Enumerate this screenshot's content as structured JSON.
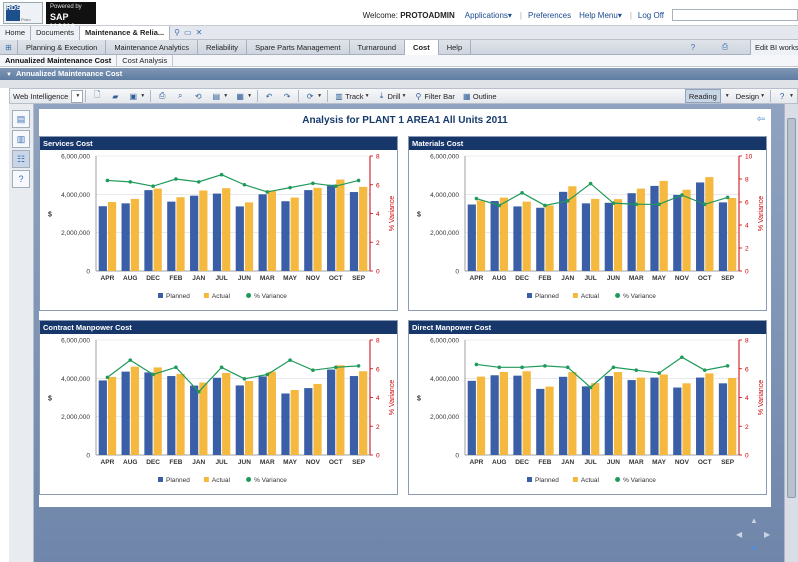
{
  "app": {
    "powered_by_line1": "Powered by",
    "powered_by_line2": "SAP HANA",
    "logo_letters": "RDS",
    "logo_caption": "Proto"
  },
  "header": {
    "welcome_label": "Welcome:",
    "username": "PROTOADMIN",
    "applications": "Applications",
    "preferences": "Preferences",
    "help_menu": "Help Menu",
    "logoff": "Log Off",
    "search_placeholder": ""
  },
  "apptabs": [
    {
      "label": "Home",
      "active": false
    },
    {
      "label": "Documents",
      "active": false
    },
    {
      "label": "Maintenance & Relia...",
      "active": true
    }
  ],
  "modtabs": [
    {
      "label": "Planning & Execution",
      "active": false
    },
    {
      "label": "Maintenance Analytics",
      "active": false
    },
    {
      "label": "Reliability",
      "active": false
    },
    {
      "label": "Spare Parts Management",
      "active": false
    },
    {
      "label": "Turnaround",
      "active": false
    },
    {
      "label": "Cost",
      "active": true
    },
    {
      "label": "Help",
      "active": false
    }
  ],
  "edit_bi": "Edit BI worksp",
  "subtabs": [
    {
      "label": "Annualized Maintenance Cost",
      "active": true
    },
    {
      "label": "Cost Analysis",
      "active": false
    }
  ],
  "document_title": "Annualized Maintenance Cost",
  "toolbar": {
    "web_intelligence": "Web Intelligence",
    "track": "Track",
    "drill": "Drill",
    "filter_bar": "Filter Bar",
    "outline": "Outline",
    "reading": "Reading",
    "design": "Design"
  },
  "report": {
    "title": "Analysis for PLANT 1  AREA1  All Units  2011"
  },
  "colors": {
    "planned": "#3a5fa6",
    "actual": "#f5b940",
    "variance": "#1e9a5a",
    "axis_right": "#cc0000"
  },
  "chart_data": [
    {
      "type": "bar",
      "title": "Services Cost",
      "categories": [
        "APR",
        "AUG",
        "DEC",
        "FEB",
        "JAN",
        "JUL",
        "JUN",
        "MAR",
        "MAY",
        "NOV",
        "OCT",
        "SEP"
      ],
      "ylabel": "$",
      "y2label": "% Variance",
      "ylim": [
        0,
        6000000
      ],
      "y2lim": [
        0,
        8
      ],
      "yticks": [
        "0",
        "2,000,000",
        "4,000,000",
        "6,000,000"
      ],
      "y2ticks": [
        "0",
        "2",
        "4",
        "6",
        "8"
      ],
      "legend": [
        "Planned",
        "Actual",
        "% Variance"
      ],
      "series": [
        {
          "name": "Planned",
          "values": [
            3380000,
            3530000,
            4220000,
            3620000,
            3930000,
            4040000,
            3370000,
            4000000,
            3640000,
            4220000,
            4500000,
            4120000
          ]
        },
        {
          "name": "Actual",
          "values": [
            3600000,
            3760000,
            4300000,
            3850000,
            4200000,
            4320000,
            3580000,
            4200000,
            3830000,
            4340000,
            4770000,
            4390000
          ]
        },
        {
          "name": "% Variance",
          "values": [
            6.3,
            6.2,
            5.9,
            6.4,
            6.2,
            6.7,
            6.0,
            5.5,
            5.8,
            6.1,
            5.9,
            6.3
          ]
        }
      ]
    },
    {
      "type": "bar",
      "title": "Materials Cost",
      "categories": [
        "APR",
        "AUG",
        "DEC",
        "FEB",
        "JAN",
        "JUL",
        "JUN",
        "MAR",
        "MAY",
        "NOV",
        "OCT",
        "SEP"
      ],
      "ylabel": "$",
      "y2label": "% Variance",
      "ylim": [
        0,
        6000000
      ],
      "y2lim": [
        0,
        10
      ],
      "yticks": [
        "0",
        "2,000,000",
        "4,000,000",
        "6,000,000"
      ],
      "y2ticks": [
        "0",
        "2",
        "4",
        "6",
        "8",
        "10"
      ],
      "legend": [
        "Planned",
        "Actual",
        "% Variance"
      ],
      "series": [
        {
          "name": "Planned",
          "values": [
            3470000,
            3650000,
            3370000,
            3300000,
            4130000,
            3530000,
            3560000,
            4060000,
            4440000,
            3970000,
            4620000,
            3580000
          ]
        },
        {
          "name": "Actual",
          "values": [
            3680000,
            3830000,
            3620000,
            3420000,
            4420000,
            3760000,
            3750000,
            4300000,
            4700000,
            4240000,
            4900000,
            3810000
          ]
        },
        {
          "name": "% Variance",
          "values": [
            6.3,
            5.7,
            6.8,
            5.7,
            6.1,
            7.6,
            5.9,
            5.8,
            5.8,
            6.6,
            5.8,
            6.4
          ]
        }
      ]
    },
    {
      "type": "bar",
      "title": "Contract Manpower Cost",
      "categories": [
        "APR",
        "AUG",
        "DEC",
        "FEB",
        "JAN",
        "JUL",
        "JUN",
        "MAR",
        "MAY",
        "NOV",
        "OCT",
        "SEP"
      ],
      "ylabel": "$",
      "y2label": "% Variance",
      "ylim": [
        0,
        6000000
      ],
      "y2lim": [
        0,
        8
      ],
      "yticks": [
        "0",
        "2,000,000",
        "4,000,000",
        "6,000,000"
      ],
      "y2ticks": [
        "0",
        "2",
        "4",
        "6",
        "8"
      ],
      "legend": [
        "Planned",
        "Actual",
        "% Variance"
      ],
      "series": [
        {
          "name": "Planned",
          "values": [
            3890000,
            4350000,
            4310000,
            4120000,
            3620000,
            4030000,
            3630000,
            4100000,
            3210000,
            3490000,
            4460000,
            4120000
          ]
        },
        {
          "name": "Actual",
          "values": [
            4070000,
            4610000,
            4570000,
            4230000,
            3780000,
            4280000,
            3860000,
            4350000,
            3390000,
            3710000,
            4680000,
            4370000
          ]
        },
        {
          "name": "% Variance",
          "values": [
            5.4,
            6.6,
            5.6,
            6.1,
            4.4,
            6.1,
            5.3,
            5.6,
            6.6,
            5.9,
            6.1,
            6.2
          ]
        }
      ]
    },
    {
      "type": "bar",
      "title": "Direct Manpower Cost",
      "categories": [
        "APR",
        "AUG",
        "DEC",
        "FEB",
        "JAN",
        "JUL",
        "JUN",
        "MAR",
        "MAY",
        "NOV",
        "OCT",
        "SEP"
      ],
      "ylabel": "$",
      "y2label": "% Variance",
      "ylim": [
        0,
        6000000
      ],
      "y2lim": [
        0,
        8
      ],
      "yticks": [
        "0",
        "2,000,000",
        "4,000,000",
        "6,000,000"
      ],
      "y2ticks": [
        "0",
        "2",
        "4",
        "6",
        "8"
      ],
      "legend": [
        "Planned",
        "Actual",
        "% Variance"
      ],
      "series": [
        {
          "name": "Planned",
          "values": [
            3870000,
            4160000,
            4140000,
            3450000,
            4080000,
            3580000,
            4120000,
            3910000,
            4040000,
            3520000,
            4040000,
            3740000
          ]
        },
        {
          "name": "Actual",
          "values": [
            4090000,
            4330000,
            4370000,
            3570000,
            4330000,
            3750000,
            4330000,
            4040000,
            4200000,
            3740000,
            4260000,
            4020000
          ]
        },
        {
          "name": "% Variance",
          "values": [
            6.3,
            6.1,
            6.1,
            6.2,
            6.1,
            4.7,
            6.1,
            5.9,
            5.7,
            6.8,
            5.9,
            6.2
          ]
        }
      ]
    }
  ]
}
